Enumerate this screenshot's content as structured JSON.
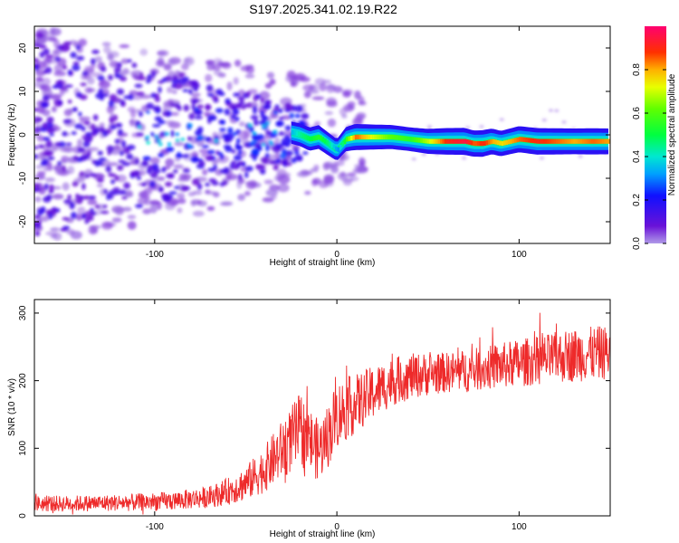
{
  "title": "S197.2025.341.02.19.R22",
  "colors": {
    "snr_line": "#ee2a2a",
    "axes": "#000000",
    "background": "#ffffff"
  },
  "chart_data": [
    {
      "type": "heatmap",
      "title": "S197.2025.341.02.19.R22",
      "xlabel": "Height of straight line (km)",
      "ylabel": "Frequency (Hz)",
      "xlim": [
        -166,
        150
      ],
      "ylim": [
        -25,
        25
      ],
      "x_ticks": [
        -100,
        0,
        100
      ],
      "y_ticks": [
        -20,
        -10,
        0,
        10,
        20
      ],
      "x_tick_labels": [
        "-100",
        "0",
        "100"
      ],
      "y_tick_labels": [
        "-20",
        "-10",
        "0",
        "10",
        "20"
      ],
      "colorbar": {
        "label": "Normalized spectral amplitude",
        "range": [
          0,
          1
        ],
        "ticks": [
          "0.0",
          "0.2",
          "0.4",
          "0.6",
          "0.8"
        ],
        "colormap": "rainbow"
      },
      "ridge": {
        "x": [
          -25,
          -20,
          -15,
          -10,
          -5,
          0,
          5,
          10,
          20,
          30,
          40,
          50,
          60,
          70,
          75,
          80,
          85,
          90,
          95,
          100,
          110,
          120,
          130,
          140,
          150
        ],
        "frequency": [
          0.5,
          0.0,
          -1.0,
          -0.5,
          -2.0,
          -3.5,
          -1.0,
          -0.5,
          -0.5,
          -0.5,
          -1.0,
          -1.5,
          -1.5,
          -1.5,
          -2.0,
          -2.0,
          -1.5,
          -2.0,
          -1.5,
          -1.0,
          -1.5,
          -1.5,
          -1.5,
          -1.5,
          -1.5
        ],
        "amplitude": [
          0.35,
          0.45,
          0.5,
          0.55,
          0.45,
          0.3,
          0.6,
          0.85,
          0.7,
          0.6,
          0.55,
          0.7,
          0.9,
          0.95,
          0.85,
          0.9,
          0.8,
          0.75,
          0.8,
          0.85,
          0.9,
          0.85,
          0.8,
          0.85,
          0.8
        ]
      },
      "noise_extent_km": [
        -166,
        -25
      ]
    },
    {
      "type": "line",
      "xlabel": "Height of straight line (km)",
      "ylabel": "SNR (10 * v/v)",
      "xlim": [
        -166,
        150
      ],
      "ylim": [
        0,
        320
      ],
      "x_ticks": [
        -100,
        0,
        100
      ],
      "y_ticks": [
        0,
        100,
        200,
        300
      ],
      "x_tick_labels": [
        "-100",
        "0",
        "100"
      ],
      "y_tick_labels": [
        "0",
        "100",
        "200",
        "300"
      ],
      "series": [
        {
          "name": "SNR",
          "color": "#ee2a2a",
          "x": [
            -166,
            -150,
            -130,
            -110,
            -90,
            -70,
            -60,
            -50,
            -40,
            -30,
            -20,
            -15,
            -10,
            -5,
            0,
            10,
            20,
            30,
            40,
            50,
            60,
            70,
            80,
            90,
            100,
            110,
            120,
            130,
            140,
            150
          ],
          "mean": [
            18,
            18,
            19,
            20,
            22,
            28,
            36,
            48,
            68,
            98,
            128,
            112,
            96,
            118,
            150,
            165,
            182,
            198,
            206,
            210,
            212,
            214,
            218,
            222,
            226,
            230,
            234,
            238,
            240,
            242
          ],
          "spread": [
            12,
            12,
            12,
            13,
            14,
            16,
            20,
            26,
            34,
            44,
            55,
            50,
            45,
            48,
            50,
            44,
            40,
            36,
            34,
            32,
            30,
            32,
            32,
            34,
            36,
            36,
            38,
            40,
            40,
            40
          ]
        }
      ]
    }
  ]
}
